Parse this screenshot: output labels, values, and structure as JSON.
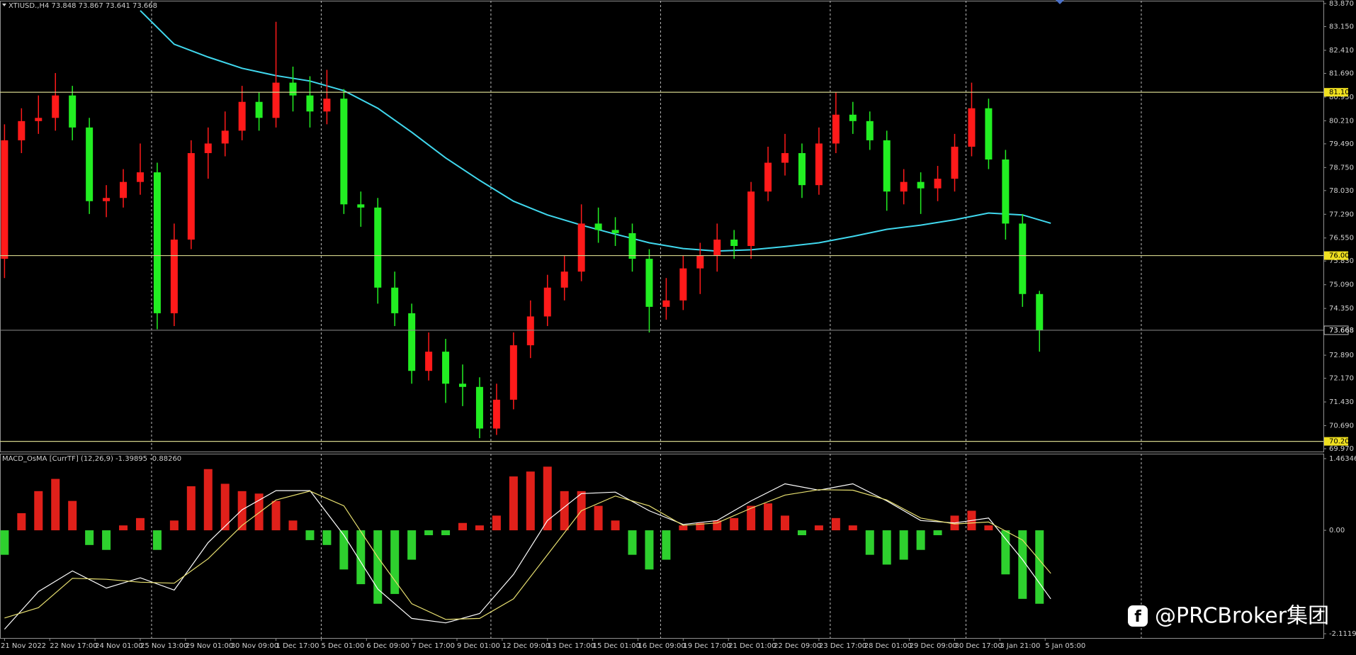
{
  "chart_data": [
    {
      "type": "candlestick",
      "title": "XTIUSD.,H4  73.848 73.867 73.641 73.668",
      "x": [
        0,
        3,
        6,
        9,
        12,
        15,
        18,
        21,
        24,
        27,
        30,
        33,
        36,
        39,
        42,
        45,
        48,
        51,
        54,
        57,
        60,
        63,
        66,
        69,
        72,
        75,
        78,
        81,
        84,
        87,
        90,
        93,
        96,
        99,
        102,
        105,
        108,
        111,
        114,
        117,
        120,
        123,
        126,
        129,
        132,
        135,
        138,
        141,
        144,
        147,
        150,
        153,
        156,
        159,
        162,
        165,
        168,
        171,
        174,
        177,
        180,
        183
      ],
      "open": [
        75.9,
        79.6,
        80.2,
        80.3,
        81.0,
        80.0,
        77.7,
        77.8,
        78.3,
        78.6,
        74.2,
        76.5,
        79.2,
        79.5,
        79.9,
        80.8,
        80.3,
        81.4,
        81.0,
        80.5,
        80.9,
        77.6,
        77.5,
        75.0,
        74.2,
        72.4,
        73.0,
        72.0,
        71.9,
        70.6,
        71.5,
        73.2,
        74.1,
        75.0,
        75.5,
        77.0,
        76.8,
        76.7,
        75.9,
        74.4,
        74.6,
        75.6,
        76.0,
        76.5,
        76.3,
        78.0,
        78.9,
        79.2,
        78.2,
        79.5,
        80.4,
        80.2,
        79.6,
        78.0,
        78.3,
        78.1,
        78.4,
        79.4,
        80.6,
        79.0,
        77.0,
        74.8
      ],
      "high": [
        80.1,
        80.6,
        81.0,
        81.7,
        81.3,
        80.3,
        78.2,
        78.7,
        79.5,
        78.9,
        77.0,
        79.6,
        80.0,
        80.5,
        81.3,
        81.1,
        83.3,
        81.9,
        81.6,
        81.8,
        81.2,
        78.0,
        77.8,
        75.5,
        74.5,
        73.6,
        73.4,
        72.6,
        72.2,
        72.0,
        73.6,
        74.6,
        75.4,
        76.0,
        77.6,
        77.5,
        77.2,
        77.0,
        76.2,
        75.3,
        76.0,
        76.4,
        77.0,
        76.8,
        78.3,
        79.4,
        79.8,
        79.5,
        80.0,
        81.1,
        80.8,
        80.5,
        79.9,
        78.7,
        78.6,
        78.8,
        79.8,
        81.4,
        80.9,
        79.3,
        77.3,
        74.9
      ],
      "low": [
        75.3,
        79.2,
        79.8,
        79.9,
        79.6,
        77.3,
        77.2,
        77.5,
        77.9,
        73.7,
        73.8,
        76.2,
        78.4,
        79.1,
        79.6,
        79.9,
        80.0,
        80.5,
        80.0,
        80.1,
        77.3,
        76.9,
        74.5,
        73.8,
        72.0,
        72.1,
        71.4,
        71.3,
        70.3,
        70.4,
        71.2,
        72.8,
        73.8,
        74.6,
        75.2,
        76.4,
        76.3,
        75.5,
        73.6,
        74.0,
        74.3,
        74.8,
        75.5,
        75.9,
        75.9,
        77.7,
        78.5,
        77.8,
        77.9,
        79.2,
        79.8,
        79.3,
        77.4,
        77.6,
        77.3,
        77.7,
        78.0,
        79.1,
        78.7,
        76.5,
        74.4,
        73.0
      ],
      "close": [
        79.6,
        80.2,
        80.3,
        81.0,
        80.0,
        77.7,
        77.8,
        78.3,
        78.6,
        74.2,
        76.5,
        79.2,
        79.5,
        79.9,
        80.8,
        80.3,
        81.4,
        81.0,
        80.5,
        80.9,
        77.6,
        77.5,
        75.0,
        74.2,
        72.4,
        73.0,
        72.0,
        71.9,
        70.6,
        71.5,
        73.2,
        74.1,
        75.0,
        75.5,
        77.0,
        76.8,
        76.7,
        75.9,
        74.4,
        74.6,
        75.6,
        76.0,
        76.5,
        76.3,
        78.0,
        78.9,
        79.2,
        78.2,
        79.5,
        80.4,
        80.2,
        79.6,
        78.0,
        78.3,
        78.1,
        78.4,
        79.4,
        80.6,
        79.0,
        77.0,
        74.8,
        73.668
      ],
      "up_color": "#ff1a1a",
      "down_color": "#22ee22",
      "ma": {
        "color": "#40d8ee",
        "x": [
          24,
          30,
          36,
          42,
          48,
          54,
          60,
          66,
          72,
          78,
          84,
          90,
          96,
          102,
          108,
          114,
          120,
          126,
          132,
          138,
          144,
          150,
          156,
          162,
          168,
          174,
          180,
          185
        ],
        "values": [
          83.65,
          82.6,
          82.2,
          81.85,
          81.62,
          81.45,
          81.15,
          80.6,
          79.85,
          79.05,
          78.35,
          77.7,
          77.27,
          76.95,
          76.67,
          76.4,
          76.22,
          76.14,
          76.18,
          76.28,
          76.4,
          76.6,
          76.82,
          76.95,
          77.12,
          77.33,
          77.27,
          77.01
        ]
      },
      "levels": [
        {
          "value": 81.1,
          "label": "81.100"
        },
        {
          "value": 76.0,
          "label": "76.000"
        },
        {
          "value": 70.2,
          "label": "70.200"
        }
      ],
      "level_color": "#d2d28a",
      "price_line": {
        "value": 73.668,
        "label": "73.668"
      },
      "separators": [
        26,
        56,
        86,
        116,
        146,
        170,
        201
      ],
      "xlim": [
        -0.8,
        233.2
      ],
      "ylim": [
        69.97,
        83.87
      ],
      "yticks": [
        {
          "value": 83.87,
          "label": "83.870"
        },
        {
          "value": 83.15,
          "label": "83.150"
        },
        {
          "value": 82.41,
          "label": "82.410"
        },
        {
          "value": 81.69,
          "label": "81.690"
        },
        {
          "value": 80.95,
          "label": "80.950"
        },
        {
          "value": 80.21,
          "label": "80.210"
        },
        {
          "value": 79.49,
          "label": "79.490"
        },
        {
          "value": 78.75,
          "label": "78.750"
        },
        {
          "value": 78.03,
          "label": "78.030"
        },
        {
          "value": 77.29,
          "label": "77.290"
        },
        {
          "value": 76.55,
          "label": "76.550"
        },
        {
          "value": 75.83,
          "label": "75.830"
        },
        {
          "value": 75.09,
          "label": "75.090"
        },
        {
          "value": 74.35,
          "label": "74.350"
        },
        {
          "value": 72.89,
          "label": "72.890"
        },
        {
          "value": 72.17,
          "label": "72.170"
        },
        {
          "value": 71.43,
          "label": "71.430"
        },
        {
          "value": 70.69,
          "label": "70.690"
        },
        {
          "value": 69.97,
          "label": "69.970"
        }
      ]
    },
    {
      "type": "macd",
      "title": "MACD_OsMA [CurrTF] (12,26,9) -1.39895 -0.88260",
      "x": [
        0,
        3,
        6,
        9,
        12,
        15,
        18,
        21,
        24,
        27,
        30,
        33,
        36,
        39,
        42,
        45,
        48,
        51,
        54,
        57,
        60,
        63,
        66,
        69,
        72,
        75,
        78,
        81,
        84,
        87,
        90,
        93,
        96,
        99,
        102,
        105,
        108,
        111,
        114,
        117,
        120,
        123,
        126,
        129,
        132,
        135,
        138,
        141,
        144,
        147,
        150,
        153,
        156,
        159,
        162,
        165,
        168,
        171,
        174,
        177,
        180,
        183
      ],
      "values": [
        -0.5,
        0.35,
        0.8,
        1.05,
        0.6,
        -0.3,
        -0.4,
        0.1,
        0.25,
        -0.4,
        0.2,
        0.9,
        1.25,
        0.95,
        0.8,
        0.75,
        0.6,
        0.2,
        -0.2,
        -0.3,
        -0.8,
        -1.1,
        -1.5,
        -1.3,
        -0.6,
        -0.1,
        -0.1,
        0.15,
        0.1,
        0.3,
        1.1,
        1.2,
        1.3,
        0.8,
        0.8,
        0.5,
        0.2,
        -0.5,
        -0.8,
        -0.6,
        0.1,
        0.15,
        0.2,
        0.25,
        0.5,
        0.55,
        0.3,
        -0.1,
        0.1,
        0.25,
        0.1,
        -0.5,
        -0.7,
        -0.6,
        -0.4,
        -0.1,
        0.3,
        0.4,
        0.1,
        -0.9,
        -1.4,
        -1.5
      ],
      "pos_color": "#e0201a",
      "neg_color": "#2ed02e",
      "lines": [
        {
          "color": "#ffffff",
          "x": [
            0,
            6,
            12,
            18,
            24,
            30,
            36,
            42,
            48,
            54,
            60,
            66,
            72,
            78,
            84,
            90,
            96,
            102,
            108,
            114,
            120,
            126,
            132,
            138,
            144,
            150,
            156,
            162,
            168,
            174,
            180,
            185
          ],
          "values": [
            -2.02,
            -1.25,
            -0.83,
            -1.18,
            -0.97,
            -1.22,
            -0.25,
            0.42,
            0.81,
            0.81,
            -0.1,
            -1.2,
            -1.8,
            -1.89,
            -1.7,
            -0.9,
            0.2,
            0.75,
            0.78,
            0.4,
            0.12,
            0.2,
            0.6,
            0.95,
            0.82,
            0.95,
            0.6,
            0.2,
            0.15,
            0.25,
            -0.6,
            -1.4
          ]
        },
        {
          "color": "#e8e070",
          "x": [
            0,
            6,
            12,
            18,
            24,
            30,
            36,
            42,
            48,
            54,
            60,
            66,
            72,
            78,
            84,
            90,
            96,
            102,
            108,
            114,
            120,
            126,
            132,
            138,
            144,
            150,
            156,
            162,
            168,
            174,
            180,
            185
          ],
          "values": [
            -1.79,
            -1.58,
            -0.98,
            -1.0,
            -1.06,
            -1.08,
            -0.58,
            0.1,
            0.62,
            0.8,
            0.5,
            -0.55,
            -1.5,
            -1.82,
            -1.8,
            -1.4,
            -0.5,
            0.4,
            0.7,
            0.5,
            0.1,
            0.15,
            0.45,
            0.72,
            0.83,
            0.82,
            0.62,
            0.25,
            0.13,
            0.17,
            -0.2,
            -0.88
          ]
        }
      ],
      "xlim": [
        -0.8,
        233.2
      ],
      "ylim": [
        -2.11198,
        1.46346
      ],
      "yticks": [
        {
          "value": 1.46346,
          "label": "1.46346"
        },
        {
          "value": 0,
          "label": "0.00"
        },
        {
          "value": -2.11198,
          "label": "-2.11198"
        }
      ],
      "xticks": [
        {
          "value": 0,
          "label": "21 Nov 2022"
        },
        {
          "value": 8,
          "label": "22 Nov 17:00"
        },
        {
          "value": 16,
          "label": "24 Nov 01:00"
        },
        {
          "value": 24,
          "label": "25 Nov 13:00"
        },
        {
          "value": 32,
          "label": "29 Nov 01:00"
        },
        {
          "value": 40,
          "label": "30 Nov 09:00"
        },
        {
          "value": 48,
          "label": "1 Dec 17:00"
        },
        {
          "value": 56,
          "label": "5 Dec 01:00"
        },
        {
          "value": 64,
          "label": "6 Dec 09:00"
        },
        {
          "value": 72,
          "label": "7 Dec 17:00"
        },
        {
          "value": 80,
          "label": "9 Dec 01:00"
        },
        {
          "value": 88,
          "label": "12 Dec 09:00"
        },
        {
          "value": 96,
          "label": "13 Dec 17:00"
        },
        {
          "value": 104,
          "label": "15 Dec 01:00"
        },
        {
          "value": 112,
          "label": "16 Dec 09:00"
        },
        {
          "value": 120,
          "label": "19 Dec 17:00"
        },
        {
          "value": 128,
          "label": "21 Dec 01:00"
        },
        {
          "value": 136,
          "label": "22 Dec 09:00"
        },
        {
          "value": 144,
          "label": "23 Dec 17:00"
        },
        {
          "value": 152,
          "label": "28 Dec 01:00"
        },
        {
          "value": 160,
          "label": "29 Dec 09:00"
        },
        {
          "value": 168,
          "label": "30 Dec 17:00"
        },
        {
          "value": 176,
          "label": "3 Jan 21:00"
        },
        {
          "value": 184,
          "label": "5 Jan 05:00"
        }
      ]
    }
  ],
  "watermark": "@PRCBroker集团"
}
